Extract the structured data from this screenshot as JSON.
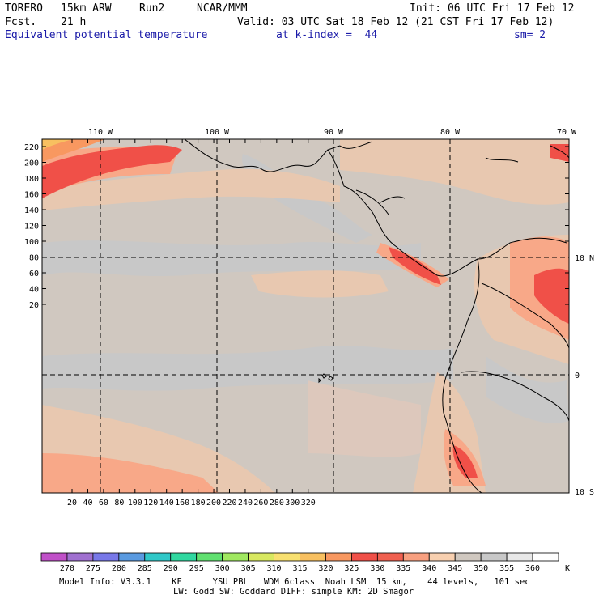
{
  "header": {
    "model": "TORERO",
    "resolution": "15km ARW",
    "run": "Run2",
    "org": "NCAR/MMM",
    "init": "Init: 06 UTC Fri 17 Feb 12",
    "fcst_label": "Fcst.",
    "fcst_hours": "21 h",
    "valid": "Valid: 03 UTC Sat 18 Feb 12 (21 CST Fri 17 Feb 12)",
    "field": "Equivalent potential temperature",
    "level": "at k-index =  44",
    "smoothing": "sm= 2"
  },
  "map": {
    "lon_labels": [
      "110 W",
      "100 W",
      "90 W",
      "80 W",
      "70 W"
    ],
    "lat_labels": [
      "10 N",
      "0",
      "10 S"
    ],
    "y_ticks": [
      "220",
      "200",
      "180",
      "160",
      "140",
      "120",
      "100",
      "80",
      "60",
      "40",
      "20"
    ],
    "x_ticks": [
      "20",
      "40",
      "60",
      "80",
      "100",
      "120",
      "140",
      "160",
      "180",
      "200",
      "220",
      "240",
      "260",
      "280",
      "300",
      "320"
    ]
  },
  "colorbar": {
    "labels": [
      "270",
      "275",
      "280",
      "285",
      "290",
      "295",
      "300",
      "305",
      "310",
      "315",
      "320",
      "325",
      "330",
      "335",
      "340",
      "345",
      "350",
      "355",
      "360"
    ],
    "unit": "K",
    "colors": [
      "#c050c8",
      "#a070d0",
      "#7878e8",
      "#5a9ae0",
      "#30c8c8",
      "#30d8a0",
      "#60e070",
      "#a0e860",
      "#d8e860",
      "#f8e070",
      "#f8c060",
      "#f89860",
      "#f05048",
      "#f06050",
      "#f8a080",
      "#f8d0b0",
      "#d0c8c0",
      "#c8c8c8",
      "#e8e8e8",
      "#ffffff"
    ]
  },
  "footer": {
    "line1": "Model Info: V3.3.1    KF      YSU PBL   WDM 6class  Noah LSM  15 km,    44 levels,   101 sec",
    "line2": "LW: Godd SW: Goddard DIFF: simple KM: 2D Smagor"
  }
}
